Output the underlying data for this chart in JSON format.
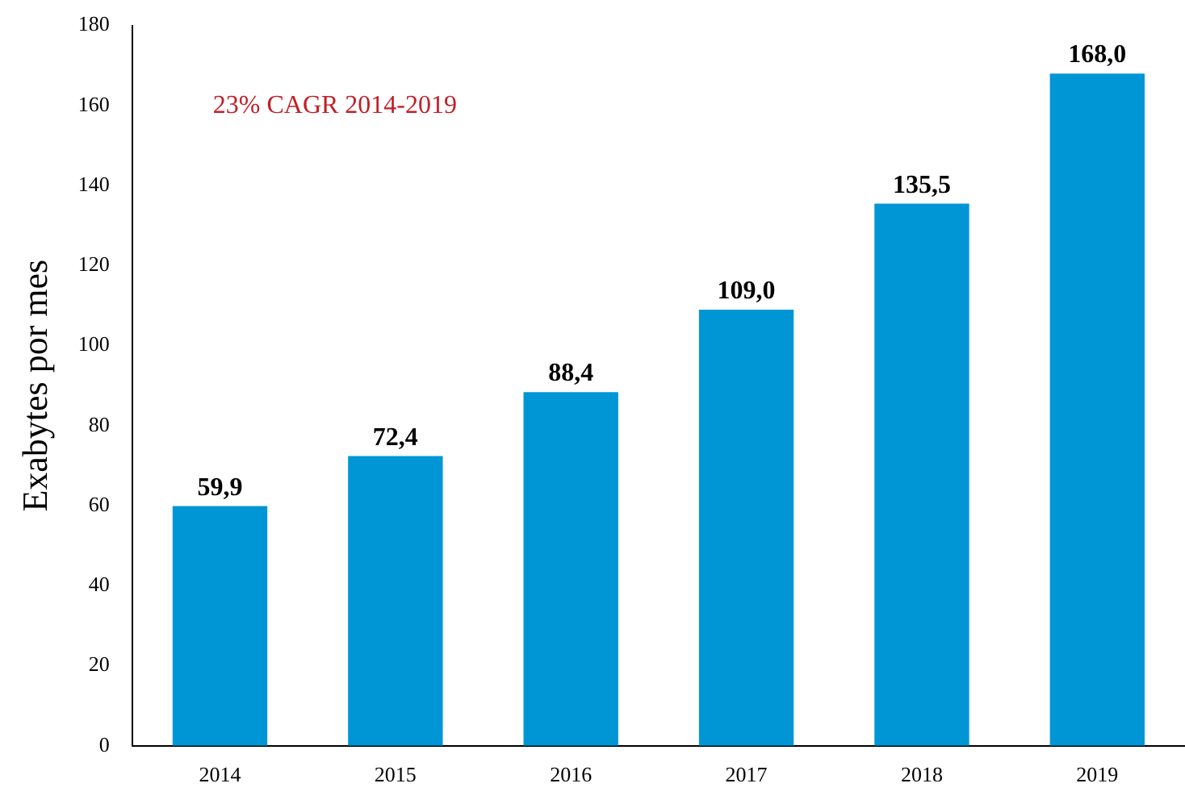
{
  "chart_data": {
    "type": "bar",
    "ylabel": "Exabytes por mes",
    "annotations": [
      "23% CAGR 2014-2019"
    ],
    "categories": [
      "2014",
      "2015",
      "2016",
      "2017",
      "2018",
      "2019"
    ],
    "values": [
      59.9,
      72.4,
      88.4,
      109.0,
      135.5,
      168.0
    ],
    "value_labels": [
      "59,9",
      "72,4",
      "88,4",
      "109,0",
      "135,5",
      "168,0"
    ],
    "color": "#0096d6",
    "ylim": [
      0,
      180
    ],
    "yticks": [
      0,
      20,
      40,
      60,
      80,
      100,
      120,
      140,
      160,
      180
    ],
    "grid": false
  }
}
